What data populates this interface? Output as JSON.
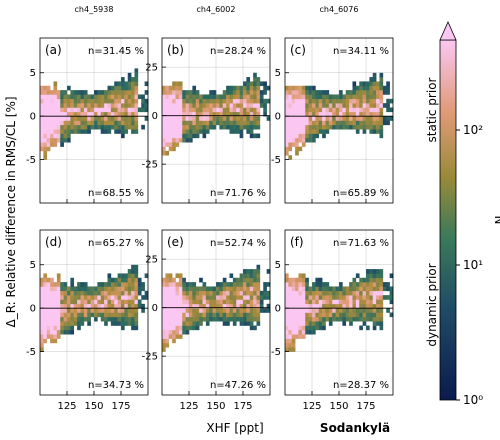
{
  "figure": {
    "ylabel": "Δ_R: Relative difference in RMS/CL [%]",
    "xlabel": "XHF [ppt]",
    "site": "Sodankylä",
    "colorbar": {
      "label": "N",
      "scale": "log",
      "range": [
        1,
        300
      ],
      "ticks": [
        "10⁰",
        "10¹",
        "10²"
      ],
      "upper_annotation": "static prior",
      "lower_annotation": "dynamic prior",
      "extend": "max",
      "colors": [
        "#0a1b4d",
        "#2f6a6a",
        "#a08a3a",
        "#e9a088",
        "#fbc7f2"
      ]
    }
  },
  "chart_data": [
    {
      "type": "heatmap",
      "panel": "(a)",
      "column_title": "ch4_5938",
      "ylim": [
        -10,
        9
      ],
      "yticks": [
        -5,
        0,
        5
      ],
      "xlim": [
        100,
        200
      ],
      "xticks": [],
      "n_top": "n=31.45 %",
      "n_bottom": "n=68.55 %",
      "seed": 11
    },
    {
      "type": "heatmap",
      "panel": "(b)",
      "column_title": "ch4_6002",
      "ylim": [
        -45,
        40
      ],
      "yticks": [
        -25,
        0,
        25
      ],
      "xlim": [
        100,
        200
      ],
      "xticks": [],
      "n_top": "n=28.24 %",
      "n_bottom": "n=71.76 %",
      "seed": 23
    },
    {
      "type": "heatmap",
      "panel": "(c)",
      "column_title": "ch4_6076",
      "ylim": [
        -10,
        9
      ],
      "yticks": [
        -5,
        0,
        5
      ],
      "xlim": [
        100,
        200
      ],
      "xticks": [],
      "n_top": "n=34.11 %",
      "n_bottom": "n=65.89 %",
      "seed": 37
    },
    {
      "type": "heatmap",
      "panel": "(d)",
      "column_title": "",
      "ylim": [
        -10,
        9
      ],
      "yticks": [
        -5,
        0,
        5
      ],
      "xlim": [
        100,
        200
      ],
      "xticks": [
        125,
        150,
        175
      ],
      "n_top": "n=65.27 %",
      "n_bottom": "n=34.73 %",
      "seed": 41
    },
    {
      "type": "heatmap",
      "panel": "(e)",
      "column_title": "",
      "ylim": [
        -45,
        40
      ],
      "yticks": [
        -25,
        0,
        25
      ],
      "xlim": [
        100,
        200
      ],
      "xticks": [
        125,
        150,
        175
      ],
      "n_top": "n=52.74 %",
      "n_bottom": "n=47.26 %",
      "seed": 53
    },
    {
      "type": "heatmap",
      "panel": "(f)",
      "column_title": "",
      "ylim": [
        -10,
        9
      ],
      "yticks": [
        -5,
        0,
        5
      ],
      "xlim": [
        100,
        200
      ],
      "xticks": [
        125,
        150,
        175
      ],
      "n_top": "n=71.63 %",
      "n_bottom": "n=28.37 %",
      "seed": 67
    }
  ]
}
